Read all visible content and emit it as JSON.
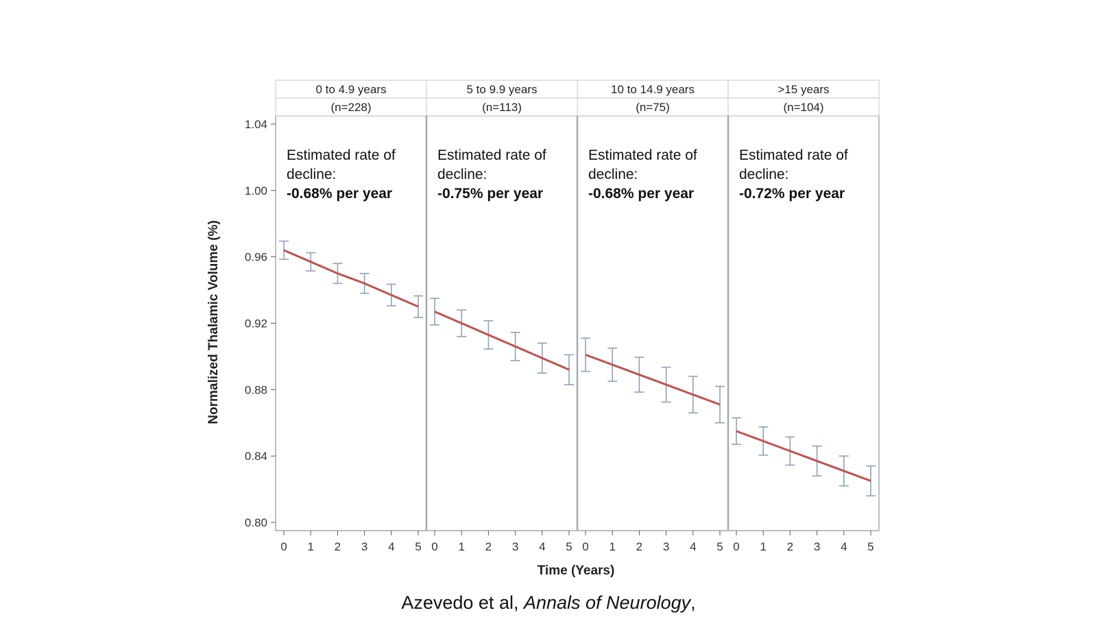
{
  "chart_data": {
    "type": "line",
    "ylabel": "Normalized Thalamic Volume (%)",
    "xlabel": "Time (Years)",
    "ylim": [
      0.8,
      1.04
    ],
    "yticks": [
      "0.80",
      "0.84",
      "0.88",
      "0.92",
      "0.96",
      "1.00",
      "1.04"
    ],
    "xticks": [
      "0",
      "1",
      "2",
      "3",
      "4",
      "5"
    ],
    "colors": {
      "line": "#c0504d",
      "errorbar": "#8aa3b8",
      "frame": "#a9a9a9"
    },
    "panels": [
      {
        "header": "0 to 4.9 years",
        "n": "(n=228)",
        "annotation_line1": "Estimated rate of",
        "annotation_line2": "decline:",
        "annotation_rate": "-0.68% per year",
        "x": [
          0,
          1,
          2,
          3,
          4,
          5
        ],
        "y": [
          0.964,
          0.957,
          0.95,
          0.944,
          0.937,
          0.93
        ],
        "err": [
          0.0055,
          0.0055,
          0.006,
          0.006,
          0.0065,
          0.0065
        ]
      },
      {
        "header": "5 to 9.9 years",
        "n": "(n=113)",
        "annotation_line1": "Estimated rate of",
        "annotation_line2": "decline:",
        "annotation_rate": "-0.75% per year",
        "x": [
          0,
          1,
          2,
          3,
          4,
          5
        ],
        "y": [
          0.927,
          0.92,
          0.913,
          0.906,
          0.899,
          0.892
        ],
        "err": [
          0.008,
          0.008,
          0.0085,
          0.0085,
          0.009,
          0.009
        ]
      },
      {
        "header": "10 to 14.9 years",
        "n": "(n=75)",
        "annotation_line1": "Estimated rate of",
        "annotation_line2": "decline:",
        "annotation_rate": "-0.68% per year",
        "x": [
          0,
          1,
          2,
          3,
          4,
          5
        ],
        "y": [
          0.901,
          0.895,
          0.889,
          0.883,
          0.877,
          0.871
        ],
        "err": [
          0.01,
          0.01,
          0.0105,
          0.0105,
          0.011,
          0.011
        ]
      },
      {
        "header": ">15 years",
        "n": "(n=104)",
        "annotation_line1": "Estimated rate of",
        "annotation_line2": "decline:",
        "annotation_rate": "-0.72% per year",
        "x": [
          0,
          1,
          2,
          3,
          4,
          5
        ],
        "y": [
          0.855,
          0.849,
          0.843,
          0.837,
          0.831,
          0.825
        ],
        "err": [
          0.008,
          0.0085,
          0.0085,
          0.009,
          0.009,
          0.009
        ]
      }
    ]
  },
  "citation": {
    "authors": "Azevedo et al, ",
    "journal": "Annals of Neurology",
    "trailing": ","
  }
}
